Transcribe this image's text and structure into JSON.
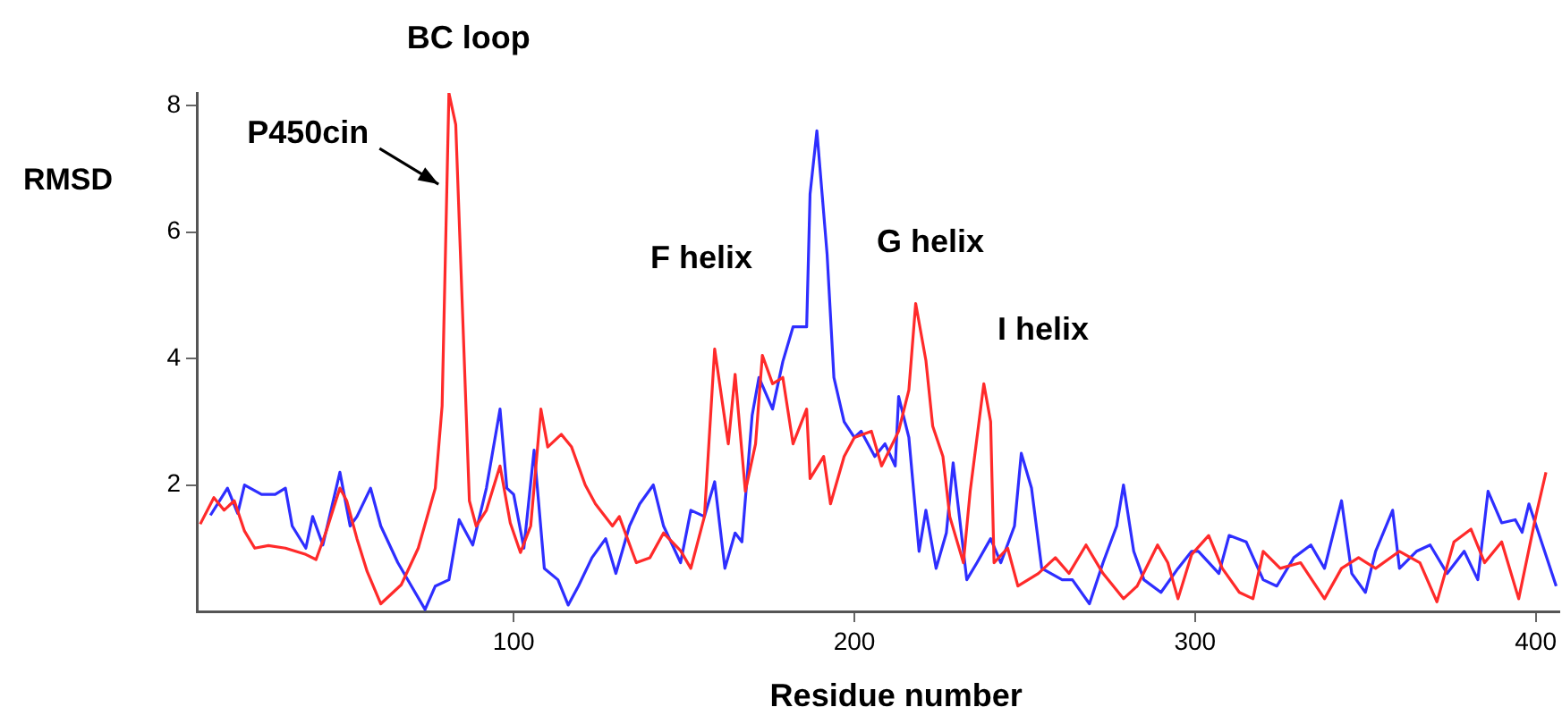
{
  "chart_data": {
    "type": "line",
    "xlabel": "Residue number",
    "ylabel": "RMSD",
    "xlim": [
      7,
      407
    ],
    "xticks": [
      100,
      200,
      300,
      400
    ],
    "ylim": [
      0,
      8.2
    ],
    "yticks": [
      2,
      4,
      6,
      8
    ],
    "grid": false,
    "legend": false,
    "marker": "none",
    "line_style": "solid",
    "annotations": [
      {
        "text": "BC loop",
        "x": 81,
        "y": 8.2
      },
      {
        "text": "P450cin",
        "x": 79,
        "y": 6.7
      },
      "F helix",
      "G helix",
      "I helix"
    ],
    "series": [
      {
        "color": "#ff2a2a",
        "x": [
          8,
          12,
          15,
          18,
          21,
          24,
          28,
          33,
          39,
          42,
          45,
          49,
          51,
          54,
          57,
          61,
          67,
          72,
          77,
          79,
          81,
          83,
          87,
          89,
          92,
          96,
          99,
          102,
          105,
          108,
          110,
          114,
          117,
          121,
          124,
          129,
          131,
          136,
          140,
          144,
          149,
          152,
          156,
          159,
          163,
          165,
          168,
          171,
          173,
          176,
          179,
          182,
          186,
          187,
          191,
          193,
          197,
          200,
          205,
          208,
          213,
          216,
          218,
          221,
          223,
          226,
          228,
          232,
          234,
          238,
          240,
          241,
          245,
          248,
          254,
          259,
          263,
          268,
          273,
          279,
          283,
          289,
          292,
          295,
          299,
          304,
          308,
          313,
          317,
          320,
          325,
          331,
          338,
          343,
          348,
          353,
          360,
          366,
          371,
          376,
          381,
          385,
          390,
          395,
          400,
          403
        ],
        "values": [
          1.38,
          1.8,
          1.6,
          1.75,
          1.27,
          1.0,
          1.04,
          1.0,
          0.9,
          0.82,
          1.27,
          1.95,
          1.75,
          1.15,
          0.63,
          0.12,
          0.42,
          1.0,
          1.95,
          3.25,
          8.2,
          7.7,
          1.75,
          1.35,
          1.6,
          2.3,
          1.4,
          0.93,
          1.35,
          3.2,
          2.6,
          2.8,
          2.6,
          2.0,
          1.7,
          1.35,
          1.5,
          0.77,
          0.85,
          1.24,
          0.96,
          0.68,
          1.5,
          4.15,
          2.65,
          3.75,
          1.9,
          2.65,
          4.05,
          3.6,
          3.7,
          2.65,
          3.2,
          2.1,
          2.45,
          1.7,
          2.45,
          2.75,
          2.85,
          2.3,
          2.85,
          3.5,
          4.87,
          3.97,
          2.93,
          2.45,
          1.5,
          0.77,
          1.9,
          3.6,
          3.0,
          0.77,
          1.0,
          0.4,
          0.6,
          0.85,
          0.6,
          1.05,
          0.6,
          0.2,
          0.4,
          1.05,
          0.77,
          0.2,
          0.9,
          1.2,
          0.68,
          0.3,
          0.2,
          0.95,
          0.68,
          0.77,
          0.2,
          0.68,
          0.85,
          0.68,
          0.95,
          0.77,
          0.15,
          1.1,
          1.3,
          0.77,
          1.1,
          0.2,
          1.5,
          2.2
        ]
      },
      {
        "color": "#2e2eff",
        "x": [
          11,
          16,
          19,
          21,
          26,
          30,
          33,
          35,
          39,
          41,
          44,
          49,
          52,
          54,
          58,
          61,
          66,
          70,
          74,
          77,
          81,
          84,
          88,
          92,
          96,
          98,
          100,
          103,
          106,
          109,
          113,
          116,
          119,
          123,
          127,
          130,
          134,
          137,
          141,
          144,
          149,
          152,
          156,
          159,
          162,
          165,
          167,
          170,
          172,
          176,
          179,
          182,
          186,
          187,
          189,
          192,
          194,
          197,
          200,
          202,
          206,
          209,
          212,
          213,
          216,
          219,
          221,
          224,
          227,
          229,
          233,
          236,
          240,
          243,
          247,
          249,
          252,
          255,
          261,
          264,
          269,
          273,
          277,
          279,
          282,
          285,
          290,
          295,
          299,
          301,
          307,
          310,
          315,
          320,
          324,
          329,
          334,
          338,
          343,
          346,
          350,
          353,
          358,
          360,
          365,
          369,
          374,
          379,
          383,
          386,
          390,
          394,
          396,
          398,
          402,
          406
        ],
        "values": [
          1.52,
          1.95,
          1.55,
          2.0,
          1.85,
          1.85,
          1.95,
          1.35,
          1.0,
          1.5,
          1.05,
          2.2,
          1.35,
          1.5,
          1.95,
          1.35,
          0.77,
          0.4,
          0.03,
          0.4,
          0.5,
          1.45,
          1.05,
          1.95,
          3.2,
          1.95,
          1.85,
          1.0,
          2.55,
          0.68,
          0.5,
          0.1,
          0.4,
          0.85,
          1.15,
          0.6,
          1.35,
          1.7,
          2.0,
          1.35,
          0.77,
          1.6,
          1.5,
          2.05,
          0.68,
          1.24,
          1.1,
          3.1,
          3.7,
          3.2,
          3.95,
          4.5,
          4.5,
          6.6,
          7.6,
          5.65,
          3.7,
          3.0,
          2.75,
          2.85,
          2.45,
          2.65,
          2.3,
          3.4,
          2.75,
          0.95,
          1.6,
          0.68,
          1.24,
          2.35,
          0.5,
          0.77,
          1.15,
          0.77,
          1.35,
          2.5,
          1.95,
          0.68,
          0.5,
          0.5,
          0.12,
          0.77,
          1.35,
          2.0,
          0.95,
          0.5,
          0.3,
          0.68,
          0.95,
          0.95,
          0.6,
          1.2,
          1.1,
          0.5,
          0.4,
          0.85,
          1.05,
          0.68,
          1.75,
          0.6,
          0.3,
          0.95,
          1.6,
          0.68,
          0.95,
          1.05,
          0.6,
          0.95,
          0.5,
          1.9,
          1.4,
          1.45,
          1.25,
          1.7,
          1.05,
          0.4
        ]
      }
    ]
  }
}
